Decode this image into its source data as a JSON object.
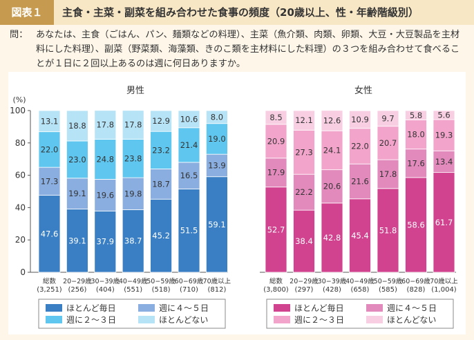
{
  "header": {
    "figure_label": "図表１",
    "title": "主食・主菜・副菜を組み合わせた食事の頻度（20歳以上、性・年齢階級別）"
  },
  "question": {
    "label": "問：",
    "text": "あなたは、主食（ごはん、パン、麺類などの料理）、主菜（魚介類、肉類、卵類、大豆・大豆製品を主材料にした料理）、副菜（野菜類、海藻類、きのこ類を主材料にした料理）の３つを組み合わせて食べることが１日に２回以上あるのは週に何日ありますか。"
  },
  "chart_data": [
    {
      "type": "bar",
      "stacked": true,
      "title": "男性",
      "ylabel": "(%)",
      "ylim": [
        0,
        100
      ],
      "yticks": [
        "0",
        "20",
        "40",
        "60",
        "80",
        "100"
      ],
      "categories": [
        {
          "label": "総数",
          "n": "(3,251)"
        },
        {
          "label": "20−29歳",
          "n": "(256)"
        },
        {
          "label": "30−39歳",
          "n": "(404)"
        },
        {
          "label": "40−49歳",
          "n": "(551)"
        },
        {
          "label": "50−59歳",
          "n": "(518)"
        },
        {
          "label": "60−69歳",
          "n": "(710)"
        },
        {
          "label": "70歳以上",
          "n": "(812)"
        }
      ],
      "series": [
        {
          "name": "ほとんど毎日",
          "color": "#3a7fc4",
          "values": [
            47.6,
            39.1,
            37.9,
            38.7,
            45.2,
            51.5,
            59.1
          ]
        },
        {
          "name": "週に４〜５日",
          "color": "#8aaee0",
          "values": [
            17.3,
            19.1,
            19.6,
            19.8,
            18.7,
            16.5,
            13.9
          ]
        },
        {
          "name": "週に２〜３日",
          "color": "#5fc7ef",
          "values": [
            22.0,
            23.0,
            24.8,
            23.8,
            23.2,
            21.4,
            19.0
          ]
        },
        {
          "name": "ほとんどない",
          "color": "#b7e3f6",
          "values": [
            13.1,
            18.8,
            17.8,
            17.8,
            12.9,
            10.6,
            8.0
          ]
        }
      ]
    },
    {
      "type": "bar",
      "stacked": true,
      "title": "女性",
      "ylim": [
        0,
        100
      ],
      "categories": [
        {
          "label": "総数",
          "n": "(3,800)"
        },
        {
          "label": "20−29歳",
          "n": "(297)"
        },
        {
          "label": "30−39歳",
          "n": "(428)"
        },
        {
          "label": "40−49歳",
          "n": "(658)"
        },
        {
          "label": "50−59歳",
          "n": "(585)"
        },
        {
          "label": "60−69歳",
          "n": "(828)"
        },
        {
          "label": "70歳以上",
          "n": "(1,004)"
        }
      ],
      "series": [
        {
          "name": "ほとんど毎日",
          "color": "#d1438f",
          "values": [
            52.7,
            38.4,
            42.8,
            45.4,
            51.8,
            58.6,
            61.7
          ]
        },
        {
          "name": "週に４〜５日",
          "color": "#e38abd",
          "values": [
            17.9,
            22.2,
            20.6,
            21.6,
            17.8,
            17.6,
            13.4
          ]
        },
        {
          "name": "週に２〜３日",
          "color": "#f3a4cb",
          "values": [
            20.9,
            27.3,
            24.1,
            22.0,
            20.7,
            18.0,
            19.3
          ]
        },
        {
          "name": "ほとんどない",
          "color": "#f8cfe2",
          "values": [
            8.5,
            12.1,
            12.6,
            10.9,
            9.7,
            5.8,
            5.6
          ]
        }
      ]
    }
  ]
}
